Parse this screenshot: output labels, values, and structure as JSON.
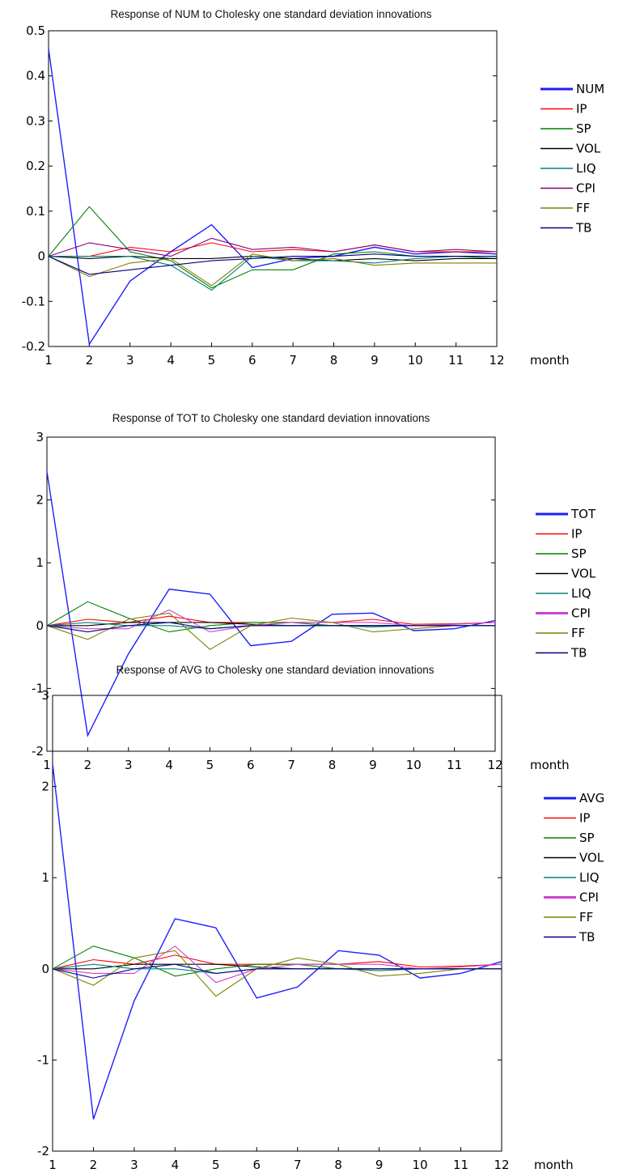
{
  "chart_data": [
    {
      "type": "line",
      "title": "Response of NUM to Cholesky one standard deviation innovations",
      "xlabel": "month",
      "ylabel": "",
      "x": [
        1,
        2,
        3,
        4,
        5,
        6,
        7,
        8,
        9,
        10,
        11,
        12
      ],
      "ylim": [
        -0.2,
        0.5
      ],
      "yticks": [
        0.5,
        0.4,
        0.3,
        0.2,
        0.1,
        0,
        -0.1,
        -0.2
      ],
      "ytick_labels": [
        "0.5",
        "0.4",
        "0.3",
        "0.2",
        "0.1",
        "0",
        "-0.1",
        "-0.2"
      ],
      "grid": false,
      "legend_position": "right",
      "series": [
        {
          "name": "NUM",
          "color": "#1e1eff",
          "values": [
            0.46,
            -0.195,
            -0.055,
            0.01,
            0.07,
            -0.025,
            -0.005,
            0.0,
            0.02,
            0.005,
            0.01,
            0.005
          ]
        },
        {
          "name": "IP",
          "color": "#ff0000",
          "values": [
            0,
            0.0,
            0.02,
            0.01,
            0.03,
            0.01,
            0.015,
            0.01,
            0.025,
            0.01,
            0.01,
            0.01
          ]
        },
        {
          "name": "SP",
          "color": "#008000",
          "values": [
            0,
            0.11,
            0.01,
            -0.01,
            -0.07,
            -0.03,
            -0.03,
            0.005,
            0.01,
            0.0,
            0.0,
            -0.005
          ]
        },
        {
          "name": "VOL",
          "color": "#000000",
          "values": [
            0,
            -0.005,
            0.0,
            -0.005,
            -0.005,
            0.0,
            -0.005,
            -0.01,
            -0.005,
            -0.01,
            -0.005,
            -0.005
          ]
        },
        {
          "name": "LIQ",
          "color": "#008080",
          "values": [
            0,
            0.0,
            0.0,
            -0.02,
            -0.075,
            0.0,
            -0.01,
            -0.01,
            -0.015,
            -0.005,
            0.0,
            0.0
          ]
        },
        {
          "name": "CPI",
          "color": "#800080",
          "values": [
            0,
            0.03,
            0.015,
            0.0,
            0.04,
            0.015,
            0.02,
            0.01,
            0.025,
            0.01,
            0.015,
            0.01
          ]
        },
        {
          "name": "FF",
          "color": "#808000",
          "values": [
            0,
            -0.045,
            -0.015,
            -0.005,
            -0.065,
            0.005,
            -0.01,
            -0.005,
            -0.02,
            -0.015,
            -0.015,
            -0.015
          ]
        },
        {
          "name": "TB",
          "color": "#000080",
          "values": [
            0,
            -0.04,
            -0.03,
            -0.02,
            -0.01,
            -0.005,
            0.0,
            0.0,
            0.005,
            0.0,
            0.0,
            0.0
          ]
        }
      ]
    },
    {
      "type": "line",
      "title": "Response of TOT to Cholesky one standard deviation innovations",
      "xlabel": "month",
      "ylabel": "",
      "x": [
        1,
        2,
        3,
        4,
        5,
        6,
        7,
        8,
        9,
        10,
        11,
        12
      ],
      "ylim": [
        -2,
        3
      ],
      "yticks": [
        3,
        2,
        1,
        0,
        -1,
        -2
      ],
      "ytick_labels": [
        "3",
        "2",
        "1",
        "0",
        "-1",
        "-2"
      ],
      "grid": false,
      "legend_position": "right",
      "series": [
        {
          "name": "TOT",
          "color": "#1e1eff",
          "values": [
            2.45,
            -1.75,
            -0.45,
            0.58,
            0.5,
            -0.32,
            -0.25,
            0.18,
            0.2,
            -0.08,
            -0.05,
            0.08
          ]
        },
        {
          "name": "IP",
          "color": "#ff0000",
          "values": [
            0,
            0.1,
            0.05,
            0.15,
            0.05,
            0.05,
            0.05,
            0.05,
            0.1,
            0.02,
            0.03,
            0.05
          ]
        },
        {
          "name": "SP",
          "color": "#008000",
          "values": [
            0,
            0.38,
            0.12,
            -0.1,
            0.0,
            0.05,
            0.05,
            0.0,
            0.0,
            0.0,
            0.0,
            0.0
          ]
        },
        {
          "name": "VOL",
          "color": "#000000",
          "values": [
            0,
            0.0,
            0.05,
            0.05,
            0.05,
            0.02,
            0.0,
            0.0,
            0.0,
            0.0,
            0.0,
            0.0
          ]
        },
        {
          "name": "LIQ",
          "color": "#008080",
          "values": [
            0,
            0.05,
            0.0,
            0.0,
            -0.05,
            0.0,
            0.0,
            0.0,
            -0.02,
            0.0,
            0.0,
            0.0
          ]
        },
        {
          "name": "CPI",
          "color": "#cc44cc",
          "values": [
            0,
            -0.05,
            -0.05,
            0.25,
            -0.1,
            0.0,
            0.05,
            0.05,
            0.05,
            0.0,
            0.02,
            0.05
          ]
        },
        {
          "name": "FF",
          "color": "#808000",
          "values": [
            0,
            -0.22,
            0.1,
            0.2,
            -0.38,
            0.0,
            0.12,
            0.05,
            -0.1,
            -0.05,
            0.0,
            0.0
          ]
        },
        {
          "name": "TB",
          "color": "#000080",
          "values": [
            0,
            -0.1,
            0.0,
            0.05,
            -0.05,
            0.0,
            0.0,
            0.0,
            0.0,
            0.0,
            0.0,
            0.0
          ]
        }
      ]
    },
    {
      "type": "line",
      "title": "Response of AVG to Cholesky one standard deviation innovations",
      "xlabel": "month",
      "ylabel": "",
      "x": [
        1,
        2,
        3,
        4,
        5,
        6,
        7,
        8,
        9,
        10,
        11,
        12
      ],
      "ylim": [
        -2,
        3
      ],
      "yticks": [
        3,
        2,
        1,
        0,
        -1,
        -2
      ],
      "ytick_labels": [
        "3",
        "2",
        "1",
        "0",
        "-1",
        "-2"
      ],
      "grid": false,
      "legend_position": "right",
      "series": [
        {
          "name": "AVG",
          "color": "#1e1eff",
          "values": [
            2.25,
            -1.65,
            -0.35,
            0.55,
            0.45,
            -0.32,
            -0.2,
            0.2,
            0.15,
            -0.1,
            -0.05,
            0.08
          ]
        },
        {
          "name": "IP",
          "color": "#ff0000",
          "values": [
            0,
            0.1,
            0.05,
            0.15,
            0.05,
            0.05,
            0.05,
            0.05,
            0.08,
            0.02,
            0.03,
            0.05
          ]
        },
        {
          "name": "SP",
          "color": "#008000",
          "values": [
            0,
            0.25,
            0.12,
            -0.08,
            0.0,
            0.05,
            0.05,
            0.0,
            0.0,
            0.0,
            0.0,
            0.0
          ]
        },
        {
          "name": "VOL",
          "color": "#000000",
          "values": [
            0,
            0.0,
            0.05,
            0.05,
            0.05,
            0.02,
            0.0,
            0.0,
            0.0,
            0.0,
            0.0,
            0.0
          ]
        },
        {
          "name": "LIQ",
          "color": "#008080",
          "values": [
            0,
            0.05,
            0.0,
            0.0,
            -0.05,
            0.0,
            0.0,
            0.0,
            -0.02,
            0.0,
            0.0,
            0.0
          ]
        },
        {
          "name": "CPI",
          "color": "#cc44cc",
          "values": [
            0,
            -0.05,
            -0.05,
            0.25,
            -0.15,
            0.0,
            0.05,
            0.05,
            0.05,
            0.0,
            0.02,
            0.05
          ]
        },
        {
          "name": "FF",
          "color": "#808000",
          "values": [
            0,
            -0.18,
            0.12,
            0.2,
            -0.3,
            0.0,
            0.12,
            0.05,
            -0.08,
            -0.05,
            0.0,
            0.0
          ]
        },
        {
          "name": "TB",
          "color": "#000080",
          "values": [
            0,
            -0.1,
            0.0,
            0.05,
            -0.05,
            0.0,
            0.0,
            0.0,
            0.0,
            0.0,
            0.0,
            0.0
          ]
        }
      ]
    }
  ]
}
